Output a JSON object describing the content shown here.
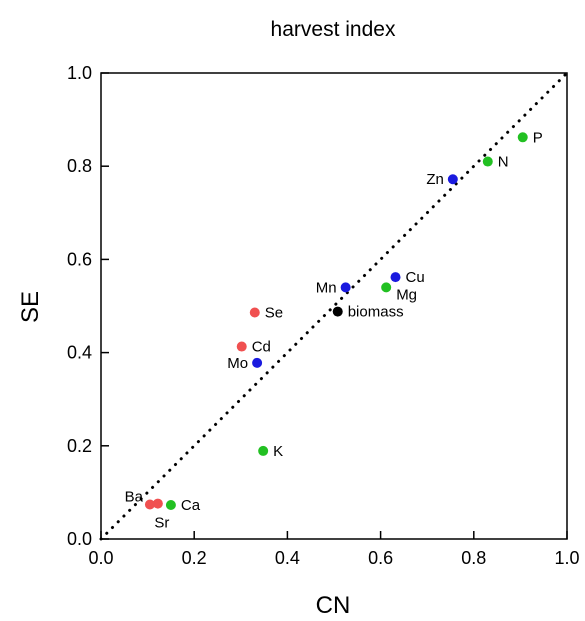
{
  "chart_data": {
    "type": "scatter",
    "title": "harvest index",
    "xlabel": "CN",
    "ylabel": "SE",
    "xlim": [
      0,
      1
    ],
    "ylim": [
      0,
      1
    ],
    "xticks": [
      "0.0",
      "0.2",
      "0.4",
      "0.6",
      "0.8",
      "1.0"
    ],
    "yticks": [
      "0.0",
      "0.2",
      "0.4",
      "0.6",
      "0.8",
      "1.0"
    ],
    "grid": false,
    "reference_line": {
      "style": "dotted",
      "from": [
        0,
        0
      ],
      "to": [
        1,
        1
      ]
    },
    "colors": {
      "red": "#f05050",
      "green": "#22c022",
      "blue": "#1a1adf",
      "black": "#000000"
    },
    "points": [
      {
        "label": "P",
        "x": 0.905,
        "y": 0.862,
        "color": "green",
        "label_pos": "right"
      },
      {
        "label": "N",
        "x": 0.83,
        "y": 0.81,
        "color": "green",
        "label_pos": "right"
      },
      {
        "label": "Zn",
        "x": 0.755,
        "y": 0.772,
        "color": "blue",
        "label_pos": "left"
      },
      {
        "label": "Cu",
        "x": 0.632,
        "y": 0.562,
        "color": "blue",
        "label_pos": "right"
      },
      {
        "label": "Mn",
        "x": 0.525,
        "y": 0.54,
        "color": "blue",
        "label_pos": "left"
      },
      {
        "label": "Mg",
        "x": 0.612,
        "y": 0.54,
        "color": "green",
        "label_pos": "right-below"
      },
      {
        "label": "biomass",
        "x": 0.508,
        "y": 0.488,
        "color": "black",
        "label_pos": "right"
      },
      {
        "label": "Se",
        "x": 0.33,
        "y": 0.486,
        "color": "red",
        "label_pos": "right"
      },
      {
        "label": "Cd",
        "x": 0.302,
        "y": 0.413,
        "color": "red",
        "label_pos": "right"
      },
      {
        "label": "Mo",
        "x": 0.335,
        "y": 0.378,
        "color": "blue",
        "label_pos": "left"
      },
      {
        "label": "K",
        "x": 0.348,
        "y": 0.189,
        "color": "green",
        "label_pos": "right"
      },
      {
        "label": "Ba",
        "x": 0.105,
        "y": 0.074,
        "color": "red",
        "label_pos": "left-above"
      },
      {
        "label": "Sr",
        "x": 0.122,
        "y": 0.076,
        "color": "red",
        "label_pos": "below"
      },
      {
        "label": "Ca",
        "x": 0.15,
        "y": 0.073,
        "color": "green",
        "label_pos": "right"
      }
    ]
  }
}
